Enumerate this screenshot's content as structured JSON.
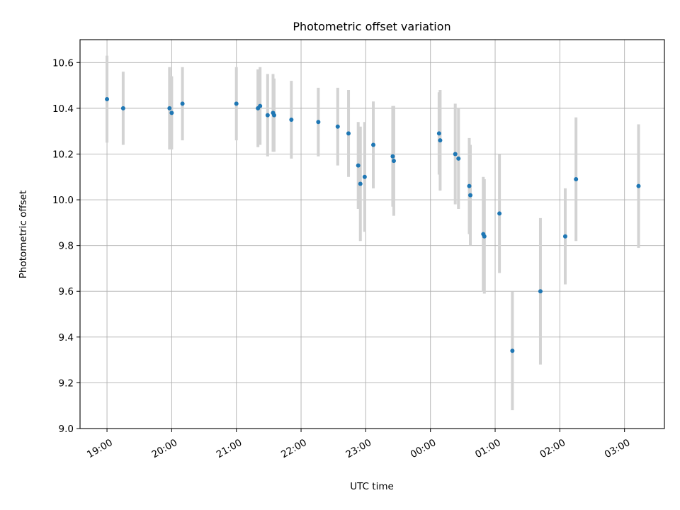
{
  "chart_data": {
    "type": "scatter",
    "title": "Photometric offset variation",
    "xlabel": "UTC time",
    "ylabel": "Photometric offset",
    "ylim": [
      9.0,
      10.7
    ],
    "xlim": [
      "18:35",
      "03:37"
    ],
    "yticks": [
      9.0,
      9.2,
      9.4,
      9.6,
      9.8,
      10.0,
      10.2,
      10.4,
      10.6
    ],
    "ytick_labels": [
      "9.0",
      "9.2",
      "9.4",
      "9.6",
      "9.8",
      "10.0",
      "10.2",
      "10.4",
      "10.6"
    ],
    "xticks": [
      "19:00",
      "20:00",
      "21:00",
      "22:00",
      "23:00",
      "00:00",
      "01:00",
      "02:00",
      "03:00"
    ],
    "grid": true,
    "point_color": "#1f77b4",
    "errorbar_color": "#d3d3d3",
    "points": [
      {
        "t": "19:00",
        "y": 10.44,
        "err": 0.19
      },
      {
        "t": "19:15",
        "y": 10.4,
        "err": 0.16
      },
      {
        "t": "19:58",
        "y": 10.4,
        "err": 0.18
      },
      {
        "t": "20:00",
        "y": 10.38,
        "err": 0.16
      },
      {
        "t": "20:10",
        "y": 10.42,
        "err": 0.16
      },
      {
        "t": "21:00",
        "y": 10.42,
        "err": 0.16
      },
      {
        "t": "21:20",
        "y": 10.4,
        "err": 0.17
      },
      {
        "t": "21:22",
        "y": 10.41,
        "err": 0.17
      },
      {
        "t": "21:29",
        "y": 10.37,
        "err": 0.18
      },
      {
        "t": "21:34",
        "y": 10.38,
        "err": 0.17
      },
      {
        "t": "21:35",
        "y": 10.37,
        "err": 0.16
      },
      {
        "t": "21:51",
        "y": 10.35,
        "err": 0.17
      },
      {
        "t": "22:16",
        "y": 10.34,
        "err": 0.15
      },
      {
        "t": "22:34",
        "y": 10.32,
        "err": 0.17
      },
      {
        "t": "22:44",
        "y": 10.29,
        "err": 0.19
      },
      {
        "t": "22:53",
        "y": 10.15,
        "err": 0.19
      },
      {
        "t": "22:55",
        "y": 10.07,
        "err": 0.25
      },
      {
        "t": "22:59",
        "y": 10.1,
        "err": 0.24
      },
      {
        "t": "23:07",
        "y": 10.24,
        "err": 0.19
      },
      {
        "t": "23:25",
        "y": 10.19,
        "err": 0.22
      },
      {
        "t": "23:26",
        "y": 10.17,
        "err": 0.24
      },
      {
        "t": "00:08",
        "y": 10.29,
        "err": 0.18
      },
      {
        "t": "00:09",
        "y": 10.26,
        "err": 0.22
      },
      {
        "t": "00:23",
        "y": 10.2,
        "err": 0.22
      },
      {
        "t": "00:26",
        "y": 10.18,
        "err": 0.22
      },
      {
        "t": "00:36",
        "y": 10.06,
        "err": 0.21
      },
      {
        "t": "00:37",
        "y": 10.02,
        "err": 0.22
      },
      {
        "t": "00:49",
        "y": 9.85,
        "err": 0.25
      },
      {
        "t": "00:50",
        "y": 9.84,
        "err": 0.25
      },
      {
        "t": "01:04",
        "y": 9.94,
        "err": 0.26
      },
      {
        "t": "01:16",
        "y": 9.34,
        "err": 0.26
      },
      {
        "t": "01:42",
        "y": 9.6,
        "err": 0.32
      },
      {
        "t": "02:05",
        "y": 9.84,
        "err": 0.21
      },
      {
        "t": "02:15",
        "y": 10.09,
        "err": 0.27
      },
      {
        "t": "03:13",
        "y": 10.06,
        "err": 0.27
      }
    ]
  }
}
